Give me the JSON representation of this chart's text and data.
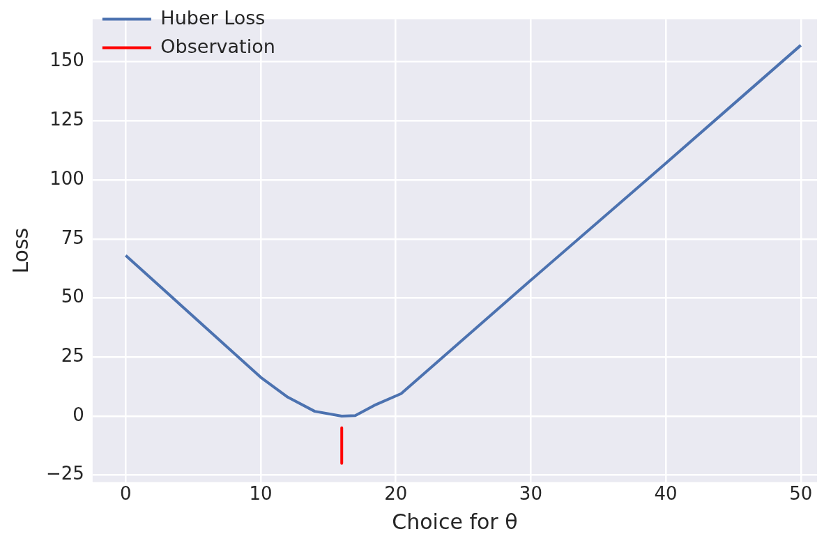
{
  "chart_data": {
    "type": "line",
    "xlabel": "Choice for θ",
    "ylabel": "Loss",
    "xlim": [
      -2.45,
      51.2
    ],
    "ylim": [
      -28,
      168
    ],
    "xticks": [
      0,
      10,
      20,
      30,
      40,
      50
    ],
    "yticks": [
      -25,
      0,
      25,
      50,
      75,
      100,
      125,
      150
    ],
    "grid": true,
    "legend": "top left",
    "marker": "none",
    "line_style": "solid",
    "series": [
      {
        "name": "Huber Loss",
        "color": "#4c72b0",
        "x": [
          0,
          10,
          12,
          14,
          16,
          17,
          18.4,
          20.4,
          30,
          40,
          50
        ],
        "values": [
          68,
          16.4,
          8,
          2,
          0,
          0.2,
          4.5,
          9.5,
          57.5,
          107,
          157
        ]
      },
      {
        "name": "Observation",
        "color": "#ff0000",
        "x": [
          16,
          16
        ],
        "values": [
          -5,
          -20
        ]
      }
    ]
  }
}
